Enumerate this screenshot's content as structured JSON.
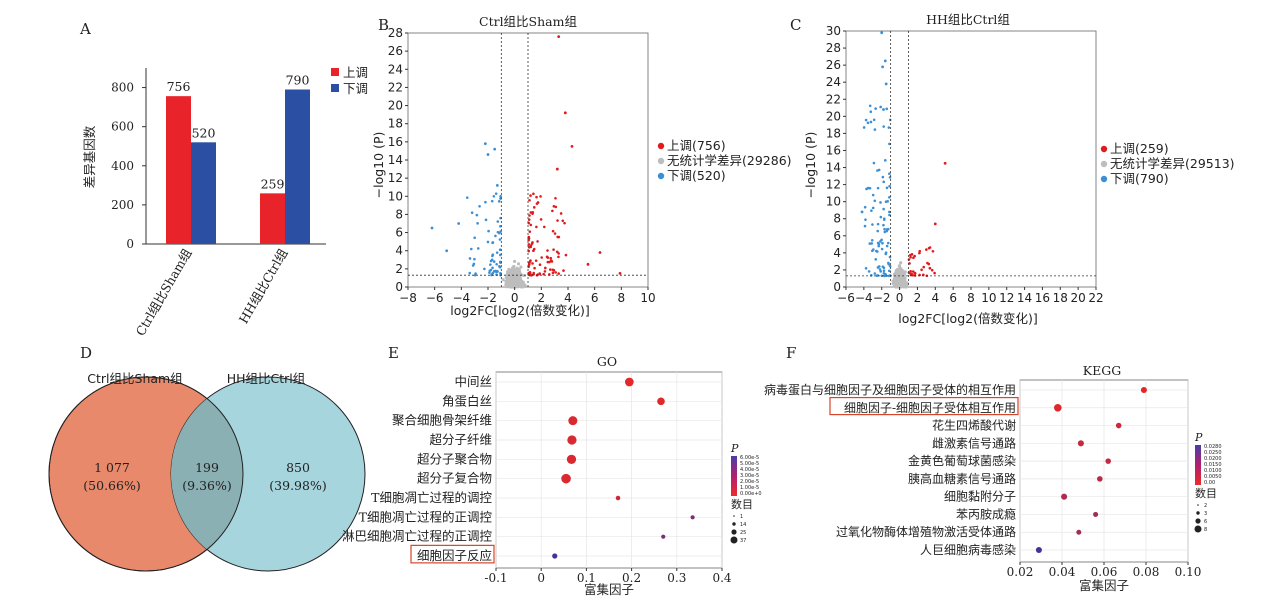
{
  "panels": {
    "A": "A",
    "B": "B",
    "C": "C",
    "D": "D",
    "E": "E",
    "F": "F"
  },
  "colors": {
    "up": "#e8232a",
    "down": "#2a4fa3",
    "up_dot": "#e31a1c",
    "down_dot": "#3a8fd6",
    "ns_dot": "#bdbdbd",
    "venn_left": "#e8896b",
    "venn_right": "#a7d5dd",
    "venn_overlap": "#8bb0b3",
    "highlight": "#d9442b"
  },
  "chart_data": [
    {
      "id": "A",
      "type": "bar",
      "categories": [
        "Ctrl组比Sham组",
        "HH组比Ctrl组"
      ],
      "series": [
        {
          "name": "上调",
          "values": [
            756,
            259
          ]
        },
        {
          "name": "下调",
          "values": [
            520,
            790
          ]
        }
      ],
      "ylabel": "差异基因数",
      "ylim": [
        0,
        900
      ],
      "yticks": [
        0,
        200,
        400,
        600,
        800
      ],
      "legend": "top-right"
    },
    {
      "id": "B",
      "type": "scatter",
      "title": "Ctrl组比Sham组",
      "xlabel": "log2FC[log2(倍数变化)]",
      "ylabel": "−log10 (P)",
      "xlim": [
        -8,
        10
      ],
      "xticks": [
        -8,
        -6,
        -4,
        -2,
        0,
        2,
        4,
        6,
        8,
        10
      ],
      "ylim": [
        0,
        28
      ],
      "yticks": [
        0,
        2,
        4,
        6,
        8,
        10,
        12,
        14,
        16,
        18,
        20,
        22,
        24,
        26,
        28
      ],
      "fc_cut": 1,
      "p_cut": 1.3,
      "legend": [
        "上调(756)",
        "无统计学差异(29286)",
        "下调(520)"
      ],
      "up_count": 756,
      "down_count": 520,
      "ns_count": 29286
    },
    {
      "id": "C",
      "type": "scatter",
      "title": "HH组比Ctrl组",
      "xlabel": "log2FC[log2(倍数变化)]",
      "ylabel": "−log10 (P)",
      "xlim": [
        -6,
        22
      ],
      "xticks": [
        -6,
        -4,
        -2,
        0,
        2,
        4,
        6,
        8,
        10,
        12,
        14,
        16,
        18,
        20,
        22
      ],
      "ylim": [
        0,
        30
      ],
      "yticks": [
        0,
        2,
        4,
        6,
        8,
        10,
        12,
        14,
        16,
        18,
        20,
        22,
        24,
        26,
        28,
        30
      ],
      "fc_cut": 1,
      "p_cut": 1.3,
      "legend": [
        "上调(259)",
        "无统计学差异(29513)",
        "下调(790)"
      ],
      "up_count": 259,
      "down_count": 790,
      "ns_count": 29513
    },
    {
      "id": "D",
      "type": "venn",
      "sets": [
        "Ctrl组比Sham组",
        "HH组比Ctrl组"
      ],
      "regions": [
        {
          "count": "1 077",
          "pct": "(50.66%)"
        },
        {
          "count": "199",
          "pct": "(9.36%)"
        },
        {
          "count": "850",
          "pct": "(39.98%)"
        }
      ]
    },
    {
      "id": "E",
      "type": "scatter",
      "title": "GO",
      "xlabel": "富集因子",
      "xlim": [
        -0.1,
        0.4
      ],
      "xticks": [
        "-0.1",
        "0",
        "0.1",
        "0.2",
        "0.3",
        "0.4"
      ],
      "terms": [
        "中间丝",
        "角蛋白丝",
        "聚合细胞骨架纤维",
        "超分子纤维",
        "超分子聚合物",
        "超分子复合物",
        "T细胞凋亡过程的调控",
        "T细胞凋亡过程的正调控",
        "淋巴细胞凋亡过程的正调控",
        "细胞因子反应"
      ],
      "rich": [
        0.195,
        0.265,
        0.07,
        0.068,
        0.067,
        0.055,
        0.17,
        0.335,
        0.27,
        0.03
      ],
      "count": [
        25,
        17,
        28,
        30,
        30,
        33,
        3,
        2,
        2,
        5
      ],
      "p": [
        1e-06,
        1e-06,
        5e-06,
        5e-06,
        5e-06,
        5e-06,
        1e-05,
        4e-05,
        4e-05,
        6e-05
      ],
      "highlight": "细胞因子反应",
      "color_title": "P",
      "color_ticks": [
        "6.00e-5",
        "5.00e-5",
        "4.00e-5",
        "3.00e-5",
        "2.00e-5",
        "1.00e-5",
        "0.00e+0"
      ],
      "size_title": "数目",
      "size_ticks": [
        "1",
        "14",
        "25",
        "37"
      ]
    },
    {
      "id": "F",
      "type": "scatter",
      "title": "KEGG",
      "xlabel": "富集因子",
      "xlim": [
        0.02,
        0.1
      ],
      "xticks": [
        "0.02",
        "0.04",
        "0.06",
        "0.08",
        "0.10"
      ],
      "terms": [
        "病毒蛋白与细胞因子及细胞因子受体的相互作用",
        "细胞因子-细胞因子受体相互作用",
        "花生四烯酸代谢",
        "雌激素信号通路",
        "金黄色葡萄球菌感染",
        "胰高血糖素信号通路",
        "细胞黏附分子",
        "苯丙胺成瘾",
        "过氧化物酶体增殖物激活受体通路",
        "人巨细胞病毒感染"
      ],
      "rich": [
        0.079,
        0.038,
        0.067,
        0.049,
        0.062,
        0.058,
        0.041,
        0.056,
        0.048,
        0.029
      ],
      "count": [
        4,
        8,
        3,
        4,
        3,
        3,
        4,
        2,
        2,
        4
      ],
      "p": [
        0.001,
        0.002,
        0.005,
        0.006,
        0.007,
        0.008,
        0.01,
        0.012,
        0.012,
        0.028
      ],
      "highlight": "细胞因子-细胞因子受体相互作用",
      "color_title": "P",
      "color_ticks": [
        "0.0280",
        "0.0250",
        "0.0200",
        "0.0150",
        "0.0100",
        "0.0050",
        "0.00"
      ],
      "size_title": "数目",
      "size_ticks": [
        "2",
        "3",
        "6",
        "8"
      ]
    }
  ]
}
